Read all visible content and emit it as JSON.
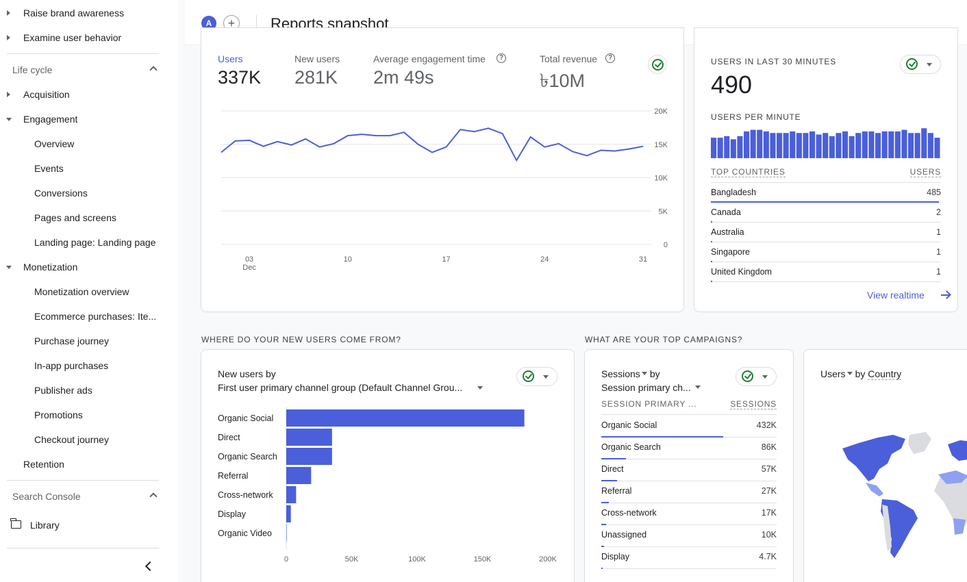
{
  "sidebar": {
    "top_items": [
      "Raise brand awareness",
      "Examine user behavior"
    ],
    "lifecycle_label": "Life cycle",
    "acquisition": "Acquisition",
    "engagement": "Engagement",
    "engagement_items": [
      "Overview",
      "Events",
      "Conversions",
      "Pages and screens",
      "Landing page: Landing page"
    ],
    "monetization": "Monetization",
    "monetization_items": [
      "Monetization overview",
      "Ecommerce purchases: Ite...",
      "Purchase journey",
      "In-app purchases",
      "Publisher ads",
      "Promotions",
      "Checkout journey"
    ],
    "retention": "Retention",
    "search_console_label": "Search Console",
    "library": "Library"
  },
  "header": {
    "avatar_letter": "A",
    "add_symbol": "+",
    "title": "Reports snapshot"
  },
  "metrics": [
    {
      "label": "Users",
      "value": "337K"
    },
    {
      "label": "New users",
      "value": "281K"
    },
    {
      "label": "Average engagement time",
      "value": "2m 49s"
    },
    {
      "label": "Total revenue",
      "value": "৳10M"
    }
  ],
  "colors": {
    "accent": "#4a5fd9",
    "status_ok": "#1e7e34"
  },
  "chart_data": [
    {
      "type": "line",
      "series": [
        {
          "name": "Users",
          "values": [
            13800,
            15500,
            15600,
            14700,
            15400,
            14900,
            15800,
            14600,
            15100,
            16300,
            16500,
            16300,
            16300,
            16800,
            15000,
            13800,
            14600,
            17200,
            16900,
            17400,
            16600,
            12600,
            16100,
            14600,
            15100,
            13900,
            13300,
            14100,
            14000,
            14300,
            14700
          ]
        },
        {
          "name": "",
          "values": []
        }
      ],
      "x_tick_labels": [
        "03",
        "10",
        "17",
        "24",
        "31"
      ],
      "x_sub_label": "Dec",
      "y_tick_labels": [
        "20K",
        "15K",
        "10K",
        "5K",
        "0"
      ],
      "ylim": [
        0,
        20000
      ]
    },
    {
      "type": "bar",
      "title": "New users by",
      "subtitle": "First user primary channel group (Default Channel Grou...",
      "categories": [
        "Organic Social",
        "Direct",
        "Organic Search",
        "Referral",
        "Cross-network",
        "Display",
        "Organic Video"
      ],
      "values": [
        182000,
        35000,
        35000,
        19000,
        7500,
        3500,
        300
      ],
      "x_tick_labels": [
        "0",
        "50K",
        "100K",
        "150K",
        "200K"
      ],
      "xlim": [
        0,
        200000
      ]
    },
    {
      "type": "bar",
      "title": "USERS PER MINUTE",
      "values": [
        13,
        13,
        14,
        12,
        14,
        17,
        18,
        18,
        17,
        16,
        16,
        16,
        17,
        16,
        16,
        17,
        15,
        16,
        14,
        16,
        17,
        14,
        16,
        17,
        17,
        16,
        17,
        17,
        17,
        18,
        16,
        16,
        19,
        16,
        13
      ]
    }
  ],
  "realtime": {
    "title": "USERS IN LAST 30 MINUTES",
    "count": "490",
    "per_minute_label": "USERS PER MINUTE",
    "col_country": "TOP COUNTRIES",
    "col_users": "USERS",
    "rows": [
      {
        "country": "Bangladesh",
        "users": "485",
        "share": 0.99
      },
      {
        "country": "Canada",
        "users": "2",
        "share": 0.005
      },
      {
        "country": "Australia",
        "users": "1",
        "share": 0.003
      },
      {
        "country": "Singapore",
        "users": "1",
        "share": 0.003
      },
      {
        "country": "United Kingdom",
        "users": "1",
        "share": 0.003
      }
    ],
    "link": "View realtime"
  },
  "sections": {
    "new_users_heading": "WHERE DO YOUR NEW USERS COME FROM?",
    "campaigns_heading": "WHAT ARE YOUR TOP CAMPAIGNS?"
  },
  "campaigns": {
    "title_metric": "Sessions",
    "title_by": "by",
    "subtitle": "Session primary ch...",
    "col_dim": "SESSION PRIMARY ...",
    "col_val": "SESSIONS",
    "rows": [
      {
        "name": "Organic Social",
        "value": "432K",
        "share": 1.0
      },
      {
        "name": "Organic Search",
        "value": "86K",
        "share": 0.2
      },
      {
        "name": "Direct",
        "value": "57K",
        "share": 0.13
      },
      {
        "name": "Referral",
        "value": "27K",
        "share": 0.063
      },
      {
        "name": "Cross-network",
        "value": "17K",
        "share": 0.04
      },
      {
        "name": "Unassigned",
        "value": "10K",
        "share": 0.023
      },
      {
        "name": "Display",
        "value": "4.7K",
        "share": 0.011
      }
    ]
  },
  "country_card": {
    "metric": "Users",
    "by": "by",
    "dimension": "Country"
  }
}
